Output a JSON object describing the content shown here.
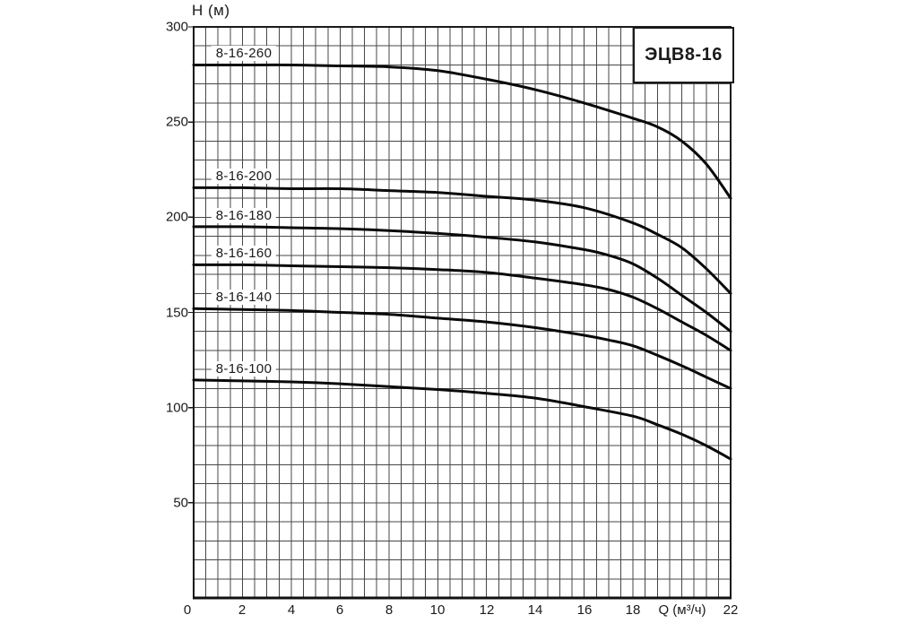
{
  "chart_data": {
    "type": "line",
    "title": "ЭЦВ8-16",
    "ylabel": "H (м)",
    "xlabel": "Q (м³/ч)",
    "xlim": [
      0,
      22
    ],
    "ylim": [
      0,
      300
    ],
    "x_grid_step": 0.5,
    "y_grid_step": 10,
    "y_ticks_labeled": [
      300,
      250,
      200,
      150,
      100,
      50
    ],
    "x_ticks_labeled": [
      0,
      2,
      4,
      6,
      8,
      10,
      12,
      14,
      16,
      18,
      22
    ],
    "xlabel_at_x": 20,
    "grid": true,
    "legend_position": "inline-labels-left",
    "line_color": "#0a0a0a",
    "grid_color": "#474747",
    "series": [
      {
        "name": "8-16-260",
        "points": [
          [
            0,
            280
          ],
          [
            2,
            280
          ],
          [
            4,
            280
          ],
          [
            6,
            279.5
          ],
          [
            8,
            279
          ],
          [
            10,
            277
          ],
          [
            12,
            272.5
          ],
          [
            14,
            267
          ],
          [
            16,
            260
          ],
          [
            18,
            252
          ],
          [
            19,
            247.5
          ],
          [
            20,
            240
          ],
          [
            21,
            228
          ],
          [
            22,
            210
          ]
        ]
      },
      {
        "name": "8-16-200",
        "points": [
          [
            0,
            215.5
          ],
          [
            2,
            215.5
          ],
          [
            4,
            215
          ],
          [
            6,
            215
          ],
          [
            8,
            214
          ],
          [
            10,
            213
          ],
          [
            12,
            211
          ],
          [
            14,
            209
          ],
          [
            16,
            205
          ],
          [
            18,
            197
          ],
          [
            19,
            191
          ],
          [
            20,
            184
          ],
          [
            21,
            173
          ],
          [
            22,
            160
          ]
        ]
      },
      {
        "name": "8-16-180",
        "points": [
          [
            0,
            195
          ],
          [
            2,
            195
          ],
          [
            4,
            194.5
          ],
          [
            6,
            194
          ],
          [
            8,
            193
          ],
          [
            10,
            191.5
          ],
          [
            12,
            189.5
          ],
          [
            14,
            187
          ],
          [
            16,
            183
          ],
          [
            17,
            180
          ],
          [
            18,
            175.5
          ],
          [
            19,
            168
          ],
          [
            20,
            159
          ],
          [
            21,
            150
          ],
          [
            22,
            140
          ]
        ]
      },
      {
        "name": "8-16-160",
        "points": [
          [
            0,
            175
          ],
          [
            2,
            175
          ],
          [
            4,
            174.5
          ],
          [
            6,
            174
          ],
          [
            8,
            173.5
          ],
          [
            10,
            172.5
          ],
          [
            12,
            171
          ],
          [
            14,
            168
          ],
          [
            16,
            164.5
          ],
          [
            17,
            162
          ],
          [
            18,
            158
          ],
          [
            19,
            152
          ],
          [
            20,
            145
          ],
          [
            21,
            138
          ],
          [
            22,
            130
          ]
        ]
      },
      {
        "name": "8-16-140",
        "points": [
          [
            0,
            152
          ],
          [
            2,
            151.5
          ],
          [
            4,
            151
          ],
          [
            6,
            150
          ],
          [
            8,
            149
          ],
          [
            10,
            147
          ],
          [
            12,
            145
          ],
          [
            14,
            142
          ],
          [
            16,
            138
          ],
          [
            17,
            135.5
          ],
          [
            18,
            132.5
          ],
          [
            19,
            127.5
          ],
          [
            20,
            122
          ],
          [
            21,
            116
          ],
          [
            22,
            110
          ]
        ]
      },
      {
        "name": "8-16-100",
        "points": [
          [
            0,
            114.5
          ],
          [
            2,
            114
          ],
          [
            4,
            113.5
          ],
          [
            6,
            112.5
          ],
          [
            8,
            111
          ],
          [
            10,
            109.5
          ],
          [
            12,
            107.5
          ],
          [
            14,
            105
          ],
          [
            16,
            100.5
          ],
          [
            18,
            95.5
          ],
          [
            19,
            91
          ],
          [
            20,
            86
          ],
          [
            21,
            80
          ],
          [
            22,
            73
          ]
        ]
      }
    ]
  }
}
